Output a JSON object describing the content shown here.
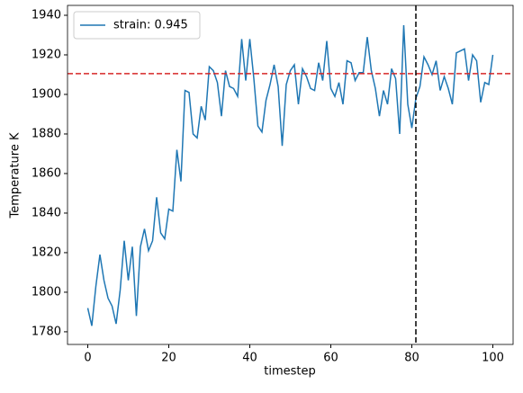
{
  "chart_data": {
    "type": "line",
    "x_label": "timestep",
    "y_label": "Temperature K",
    "x": [
      0,
      1,
      2,
      3,
      4,
      5,
      6,
      7,
      8,
      9,
      10,
      11,
      12,
      13,
      14,
      15,
      16,
      17,
      18,
      19,
      20,
      21,
      22,
      23,
      24,
      25,
      26,
      27,
      28,
      29,
      30,
      31,
      32,
      33,
      34,
      35,
      36,
      37,
      38,
      39,
      40,
      41,
      42,
      43,
      44,
      45,
      46,
      47,
      48,
      49,
      50,
      51,
      52,
      53,
      54,
      55,
      56,
      57,
      58,
      59,
      60,
      61,
      62,
      63,
      64,
      65,
      66,
      67,
      68,
      69,
      70,
      71,
      72,
      73,
      74,
      75,
      76,
      77,
      78,
      79,
      80,
      81,
      82,
      83,
      84,
      85,
      86,
      87,
      88,
      89,
      90,
      91,
      92,
      93,
      94,
      95,
      96,
      97,
      98,
      99,
      100
    ],
    "series": [
      {
        "name": "strain: 0.945",
        "color": "#1f77b4",
        "values": [
          1792,
          1783,
          1803,
          1819,
          1806,
          1797,
          1793,
          1784,
          1801,
          1826,
          1806,
          1823,
          1788,
          1823,
          1832,
          1821,
          1826,
          1848,
          1830,
          1827,
          1842,
          1841,
          1872,
          1856,
          1902,
          1901,
          1880,
          1878,
          1894,
          1887,
          1914,
          1912,
          1906,
          1889,
          1912,
          1904,
          1903,
          1899,
          1928,
          1907,
          1928,
          1908,
          1884,
          1881,
          1897,
          1905,
          1915,
          1904,
          1874,
          1905,
          1912,
          1915,
          1895,
          1913,
          1909,
          1903,
          1902,
          1916,
          1907,
          1927,
          1903,
          1899,
          1906,
          1895,
          1917,
          1916,
          1907,
          1911,
          1911,
          1929,
          1912,
          1903,
          1889,
          1902,
          1895,
          1913,
          1908,
          1880,
          1935,
          1895,
          1883,
          1898,
          1904,
          1919,
          1915,
          1910,
          1917,
          1902,
          1909,
          1903,
          1895,
          1921,
          1922,
          1923,
          1907,
          1920,
          1917,
          1896,
          1906,
          1905,
          1920
        ]
      }
    ],
    "xlim": [
      -5,
      105
    ],
    "xticks": [
      0,
      20,
      40,
      60,
      80,
      100
    ],
    "ylim": [
      1773.6,
      1945
    ],
    "yticks": [
      1780,
      1800,
      1820,
      1840,
      1860,
      1880,
      1900,
      1920,
      1940
    ],
    "hline": {
      "value": 1910.5,
      "color": "#d62728"
    },
    "vline": {
      "value": 81,
      "color": "#000000"
    },
    "legend": "upper-left"
  }
}
